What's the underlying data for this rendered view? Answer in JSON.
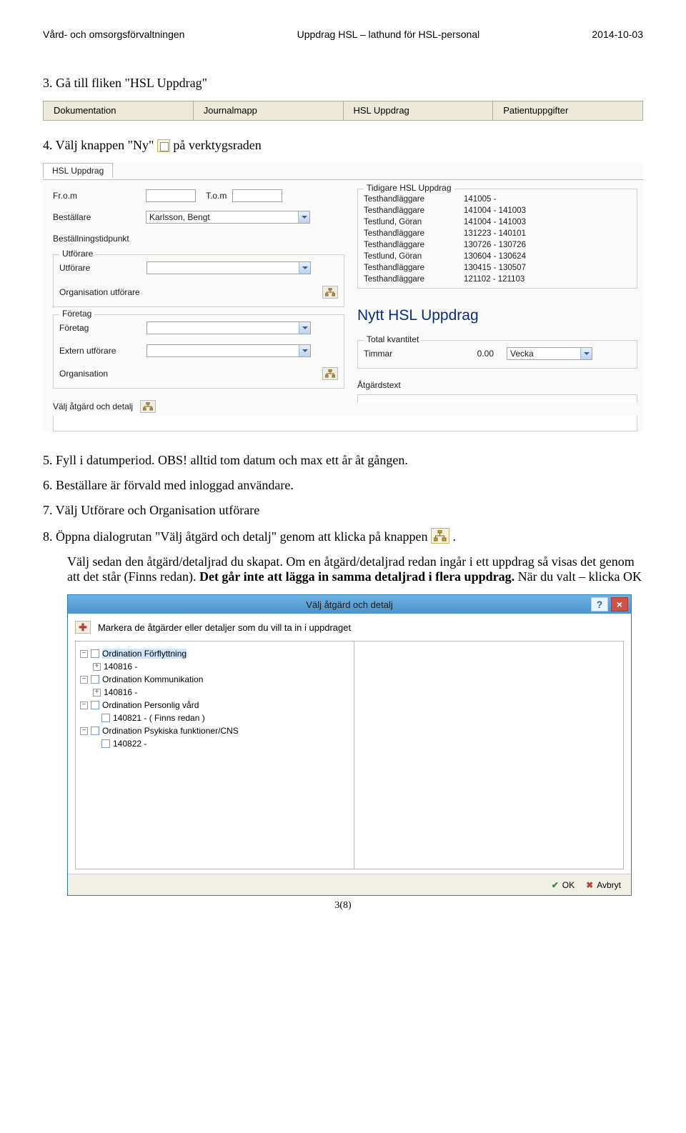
{
  "header": {
    "left": "Vård- och omsorgsförvaltningen",
    "center": "Uppdrag  HSL – lathund för HSL-personal",
    "right": "2014-10-03"
  },
  "steps": {
    "s3": "3.   Gå till fliken \"HSL Uppdrag\"",
    "s4a": "4.   Välj knappen \"Ny\" ",
    "s4b": " på verktygsraden",
    "s5": "5.   Fyll i datumperiod. OBS! alltid tom datum och max ett år åt gången.",
    "s6": "6.   Beställare är förvald med inloggad användare.",
    "s7": "7.   Välj Utförare och Organisation utförare",
    "s8a": "8.   Öppna dialogrutan \"Välj åtgärd och detalj\" genom att klicka på knappen ",
    "s8b": ".",
    "s9a": "Välj sedan den åtgärd/detaljrad du skapat. Om en åtgärd/detaljrad redan ingår i ett uppdrag så visas det genom att det står (Finns redan). ",
    "s9b": "Det går inte att lägga in samma detaljrad i flera uppdrag.",
    "s9c": " När du valt – klicka OK"
  },
  "tabs": {
    "t1": "Dokumentation",
    "t2": "Journalmapp",
    "t3": "HSL Uppdrag",
    "t4": "Patientuppgifter"
  },
  "form": {
    "tab_title": "HSL Uppdrag",
    "from_label": "Fr.o.m",
    "tom_label": "T.o.m",
    "bestallare_label": "Beställare",
    "bestallare_value": "Karlsson, Bengt",
    "bestallningstidpunkt_label": "Beställningstidpunkt",
    "utforare_group": "Utförare",
    "utforare_label": "Utförare",
    "org_utforare_label": "Organisation utförare",
    "foretag_group": "Företag",
    "foretag_label": "Företag",
    "extern_label": "Extern utförare",
    "organisation_label": "Organisation",
    "valj_atgard_label": "Välj åtgärd och detalj",
    "prev_title": "Tidigare HSL Uppdrag",
    "prev_rows": [
      {
        "a": "Testhandläggare",
        "b": "141005 -"
      },
      {
        "a": "Testhandläggare",
        "b": "141004 - 141003"
      },
      {
        "a": "Testlund, Göran",
        "b": "141004 - 141003"
      },
      {
        "a": "Testhandläggare",
        "b": "131223 - 140101"
      },
      {
        "a": "Testhandläggare",
        "b": "130726 - 130726"
      },
      {
        "a": "Testlund, Göran",
        "b": "130604 - 130624"
      },
      {
        "a": "Testhandläggare",
        "b": "130415 - 130507"
      },
      {
        "a": "Testhandläggare",
        "b": "121102 - 121103"
      }
    ],
    "nytt_uppdrag": "Nytt HSL Uppdrag",
    "total_group": "Total kvantitet",
    "timmar_label": "Timmar",
    "timmar_value": "0.00",
    "vecka_value": "Vecka",
    "atgardstext_label": "Åtgärdstext"
  },
  "dialog": {
    "title": "Välj åtgärd och detalj",
    "instruction": "Markera de åtgärder eller detaljer som du vill ta in i uppdraget",
    "nodes": {
      "n1": "Ordination Förflyttning",
      "n1a": "140816 -",
      "n2": "Ordination Kommunikation",
      "n2a": "140816 -",
      "n3": "Ordination Personlig vård",
      "n3a": "140821 -  ( Finns redan )",
      "n4": "Ordination Psykiska funktioner/CNS",
      "n4a": "140822 -"
    },
    "ok": "OK",
    "cancel": "Avbryt"
  },
  "page_num": "3(8)"
}
